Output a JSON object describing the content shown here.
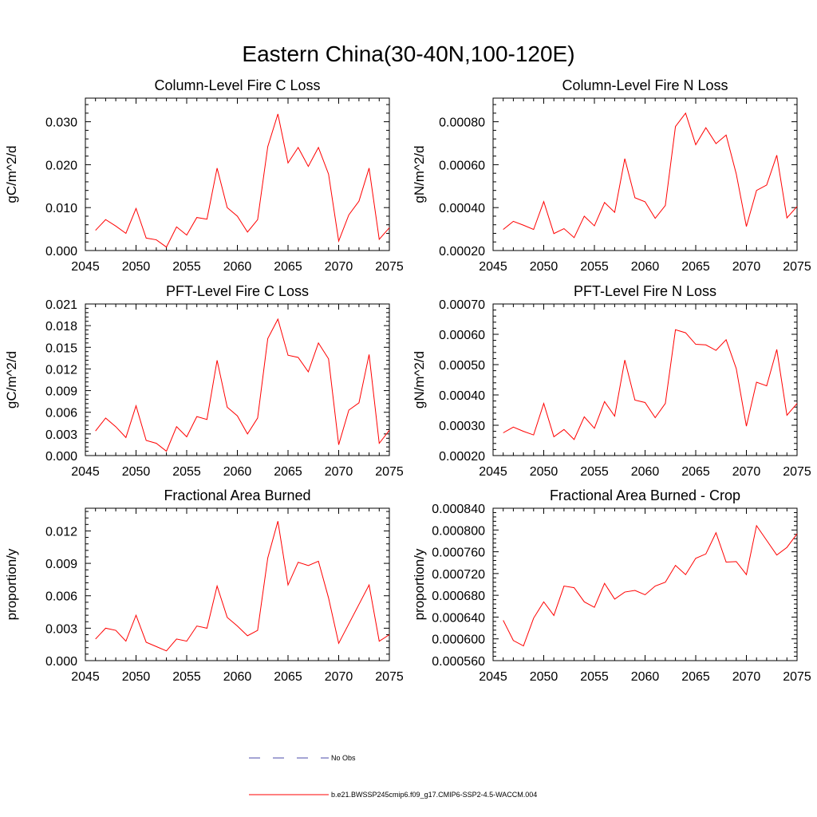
{
  "figure": {
    "title": "Eastern China(30-40N,100-120E)"
  },
  "legend": {
    "items": [
      {
        "label": "No Obs",
        "color": "#4a4aa8",
        "dash": "dashed"
      },
      {
        "label": "b.e21.BWSSP245cmip6.f09_g17.CMIP6-SSP2-4.5-WACCM.004",
        "color": "#ff0000",
        "dash": "solid"
      }
    ]
  },
  "chart_data": [
    {
      "type": "line",
      "title": "Column-Level Fire C Loss",
      "xlabel": "",
      "ylabel": "gC/m^2/d",
      "xlim": [
        2045,
        2075
      ],
      "ylim": [
        0,
        0.0355
      ],
      "xticks": [
        "2045",
        "2050",
        "2055",
        "2060",
        "2065",
        "2070",
        "2075"
      ],
      "yticks": [
        "0.000",
        "0.010",
        "0.020",
        "0.030"
      ],
      "ytick_values": [
        0,
        0.01,
        0.02,
        0.03
      ],
      "grid": false,
      "series": [
        {
          "color": "#ff0000",
          "x": [
            2046,
            2047,
            2048,
            2049,
            2050,
            2051,
            2052,
            2053,
            2054,
            2055,
            2056,
            2057,
            2058,
            2059,
            2060,
            2061,
            2062,
            2063,
            2064,
            2065,
            2066,
            2067,
            2068,
            2069,
            2070,
            2071,
            2072,
            2073,
            2074,
            2075
          ],
          "y": [
            0.0047,
            0.0072,
            0.0057,
            0.004,
            0.0098,
            0.0029,
            0.0025,
            0.0008,
            0.0055,
            0.0036,
            0.0077,
            0.0073,
            0.0192,
            0.01,
            0.008,
            0.0043,
            0.0072,
            0.0242,
            0.0318,
            0.0204,
            0.024,
            0.0196,
            0.024,
            0.0178,
            0.0022,
            0.0083,
            0.0115,
            0.0192,
            0.0026,
            0.0053
          ]
        }
      ]
    },
    {
      "type": "line",
      "title": "Column-Level Fire N Loss",
      "xlabel": "",
      "ylabel": "gN/m^2/d",
      "xlim": [
        2045,
        2075
      ],
      "ylim": [
        0.0002,
        0.00091
      ],
      "xticks": [
        "2045",
        "2050",
        "2055",
        "2060",
        "2065",
        "2070",
        "2075"
      ],
      "yticks": [
        "0.00020",
        "0.00040",
        "0.00060",
        "0.00080"
      ],
      "ytick_values": [
        0.0002,
        0.0004,
        0.0006,
        0.0008
      ],
      "grid": false,
      "series": [
        {
          "color": "#ff0000",
          "x": [
            2046,
            2047,
            2048,
            2049,
            2050,
            2051,
            2052,
            2053,
            2054,
            2055,
            2056,
            2057,
            2058,
            2059,
            2060,
            2061,
            2062,
            2063,
            2064,
            2065,
            2066,
            2067,
            2068,
            2069,
            2070,
            2071,
            2072,
            2073,
            2074,
            2075
          ],
          "y": [
            0.000298,
            0.000336,
            0.000318,
            0.000298,
            0.000428,
            0.000279,
            0.000302,
            0.00026,
            0.00036,
            0.000315,
            0.000424,
            0.000378,
            0.000628,
            0.000446,
            0.000427,
            0.00035,
            0.00041,
            0.000778,
            0.00084,
            0.000693,
            0.000772,
            0.000698,
            0.000738,
            0.000557,
            0.000312,
            0.00048,
            0.000505,
            0.000644,
            0.000352,
            0.000405
          ]
        }
      ]
    },
    {
      "type": "line",
      "title": "PFT-Level Fire C Loss",
      "xlabel": "",
      "ylabel": "gC/m^2/d",
      "xlim": [
        2045,
        2075
      ],
      "ylim": [
        0,
        0.021
      ],
      "xticks": [
        "2045",
        "2050",
        "2055",
        "2060",
        "2065",
        "2070",
        "2075"
      ],
      "yticks": [
        "0.000",
        "0.003",
        "0.006",
        "0.009",
        "0.012",
        "0.015",
        "0.018",
        "0.021"
      ],
      "ytick_values": [
        0,
        0.003,
        0.006,
        0.009,
        0.012,
        0.015,
        0.018,
        0.021
      ],
      "grid": false,
      "series": [
        {
          "color": "#ff0000",
          "x": [
            2046,
            2047,
            2048,
            2049,
            2050,
            2051,
            2052,
            2053,
            2054,
            2055,
            2056,
            2057,
            2058,
            2059,
            2060,
            2061,
            2062,
            2063,
            2064,
            2065,
            2066,
            2067,
            2068,
            2069,
            2070,
            2071,
            2072,
            2073,
            2074,
            2075
          ],
          "y": [
            0.0034,
            0.0052,
            0.004,
            0.0025,
            0.0069,
            0.0021,
            0.0017,
            0.0006,
            0.004,
            0.0026,
            0.0054,
            0.005,
            0.0132,
            0.0067,
            0.0055,
            0.003,
            0.0052,
            0.0162,
            0.0189,
            0.0139,
            0.0136,
            0.0116,
            0.0156,
            0.0134,
            0.0015,
            0.0063,
            0.0073,
            0.014,
            0.0017,
            0.0035
          ]
        }
      ]
    },
    {
      "type": "line",
      "title": "PFT-Level Fire N Loss",
      "xlabel": "",
      "ylabel": "gN/m^2/d",
      "xlim": [
        2045,
        2075
      ],
      "ylim": [
        0.0002,
        0.0007
      ],
      "xticks": [
        "2045",
        "2050",
        "2055",
        "2060",
        "2065",
        "2070",
        "2075"
      ],
      "yticks": [
        "0.00020",
        "0.00030",
        "0.00040",
        "0.00050",
        "0.00060",
        "0.00070"
      ],
      "ytick_values": [
        0.0002,
        0.0003,
        0.0004,
        0.0005,
        0.0006,
        0.0007
      ],
      "grid": false,
      "series": [
        {
          "color": "#ff0000",
          "x": [
            2046,
            2047,
            2048,
            2049,
            2050,
            2051,
            2052,
            2053,
            2054,
            2055,
            2056,
            2057,
            2058,
            2059,
            2060,
            2061,
            2062,
            2063,
            2064,
            2065,
            2066,
            2067,
            2068,
            2069,
            2070,
            2071,
            2072,
            2073,
            2074,
            2075
          ],
          "y": [
            0.000275,
            0.000294,
            0.00028,
            0.000268,
            0.000372,
            0.000262,
            0.000286,
            0.000253,
            0.000328,
            0.00029,
            0.000378,
            0.00033,
            0.000515,
            0.000383,
            0.000375,
            0.000325,
            0.000372,
            0.000615,
            0.000605,
            0.000567,
            0.000565,
            0.000547,
            0.000582,
            0.000487,
            0.000297,
            0.000442,
            0.00043,
            0.00055,
            0.000333,
            0.000372
          ]
        }
      ]
    },
    {
      "type": "line",
      "title": "Fractional Area Burned",
      "xlabel": "",
      "ylabel": "proportion/y",
      "xlim": [
        2045,
        2075
      ],
      "ylim": [
        0,
        0.0141
      ],
      "xticks": [
        "2045",
        "2050",
        "2055",
        "2060",
        "2065",
        "2070",
        "2075"
      ],
      "yticks": [
        "0.000",
        "0.003",
        "0.006",
        "0.009",
        "0.012"
      ],
      "ytick_values": [
        0,
        0.003,
        0.006,
        0.009,
        0.012
      ],
      "grid": false,
      "series": [
        {
          "color": "#ff0000",
          "x": [
            2046,
            2047,
            2048,
            2049,
            2050,
            2051,
            2052,
            2053,
            2054,
            2055,
            2056,
            2057,
            2058,
            2059,
            2060,
            2061,
            2062,
            2063,
            2064,
            2065,
            2066,
            2067,
            2068,
            2069,
            2070,
            2071,
            2072,
            2073,
            2074,
            2075
          ],
          "y": [
            0.002,
            0.003,
            0.0028,
            0.0018,
            0.0042,
            0.0017,
            0.0013,
            0.0009,
            0.002,
            0.0018,
            0.0032,
            0.003,
            0.0069,
            0.004,
            0.0032,
            0.0023,
            0.0028,
            0.0095,
            0.0129,
            0.007,
            0.0091,
            0.0088,
            0.0092,
            0.0058,
            0.0016,
            0.0034,
            0.0052,
            0.007,
            0.0018,
            0.0024
          ]
        }
      ]
    },
    {
      "type": "line",
      "title": "Fractional Area Burned - Crop",
      "xlabel": "",
      "ylabel": "proportion/y",
      "xlim": [
        2045,
        2075
      ],
      "ylim": [
        0.00056,
        0.00084
      ],
      "xticks": [
        "2045",
        "2050",
        "2055",
        "2060",
        "2065",
        "2070",
        "2075"
      ],
      "yticks": [
        "0.000560",
        "0.000600",
        "0.000640",
        "0.000680",
        "0.000720",
        "0.000760",
        "0.000800",
        "0.000840"
      ],
      "ytick_values": [
        0.00056,
        0.0006,
        0.00064,
        0.00068,
        0.00072,
        0.00076,
        0.0008,
        0.00084
      ],
      "grid": false,
      "series": [
        {
          "color": "#ff0000",
          "x": [
            2046,
            2047,
            2048,
            2049,
            2050,
            2051,
            2052,
            2053,
            2054,
            2055,
            2056,
            2057,
            2058,
            2059,
            2060,
            2061,
            2062,
            2063,
            2064,
            2065,
            2066,
            2067,
            2068,
            2069,
            2070,
            2071,
            2072,
            2073,
            2074,
            2075
          ],
          "y": [
            0.000634,
            0.000597,
            0.000587,
            0.000638,
            0.000668,
            0.000643,
            0.000697,
            0.000694,
            0.000668,
            0.000658,
            0.000702,
            0.000673,
            0.000686,
            0.000689,
            0.000681,
            0.000697,
            0.000704,
            0.000735,
            0.000718,
            0.000748,
            0.000756,
            0.000795,
            0.000741,
            0.000742,
            0.000718,
            0.000808,
            0.000781,
            0.000754,
            0.000768,
            0.000793
          ]
        }
      ]
    }
  ]
}
